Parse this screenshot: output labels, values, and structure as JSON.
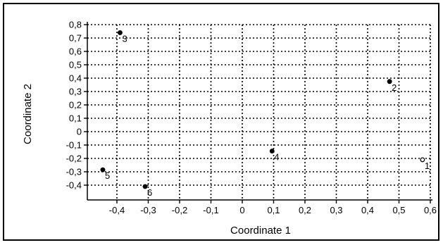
{
  "chart_data": {
    "type": "scatter",
    "xlabel": "Coordinate 1",
    "ylabel": "Coordinate 2",
    "xlim": [
      -0.5,
      0.6
    ],
    "ylim": [
      -0.45,
      0.8
    ],
    "x_ticks": [
      -0.4,
      -0.3,
      -0.2,
      -0.1,
      0,
      0.1,
      0.2,
      0.3,
      0.4,
      0.5,
      0.6
    ],
    "x_tick_labels": [
      "-0,4",
      "-0,3",
      "-0,2",
      "-0,1",
      "0",
      "0,1",
      "0,2",
      "0,3",
      "0,4",
      "0,5",
      "0,6"
    ],
    "y_ticks": [
      0.8,
      0.7,
      0.6,
      0.5,
      0.4,
      0.3,
      0.2,
      0.1,
      0,
      -0.1,
      -0.2,
      -0.3,
      -0.4
    ],
    "y_tick_labels": [
      "0,8",
      "0,7",
      "0,6",
      "0,5",
      "0,4",
      "0,3",
      "0,2",
      "0,1",
      "0",
      "-0,1",
      "-0,2",
      "-0,3",
      "-0,4"
    ],
    "grid": true,
    "points": [
      {
        "label": "1",
        "x": 0.575,
        "y": -0.21,
        "filled": false
      },
      {
        "label": "2",
        "x": 0.47,
        "y": 0.375,
        "filled": true
      },
      {
        "label": "3",
        "x": -0.39,
        "y": 0.74,
        "filled": true
      },
      {
        "label": "4",
        "x": 0.095,
        "y": -0.145,
        "filled": true
      },
      {
        "label": "5",
        "x": -0.445,
        "y": -0.285,
        "filled": true
      },
      {
        "label": "6",
        "x": -0.31,
        "y": -0.41,
        "filled": true
      }
    ]
  }
}
